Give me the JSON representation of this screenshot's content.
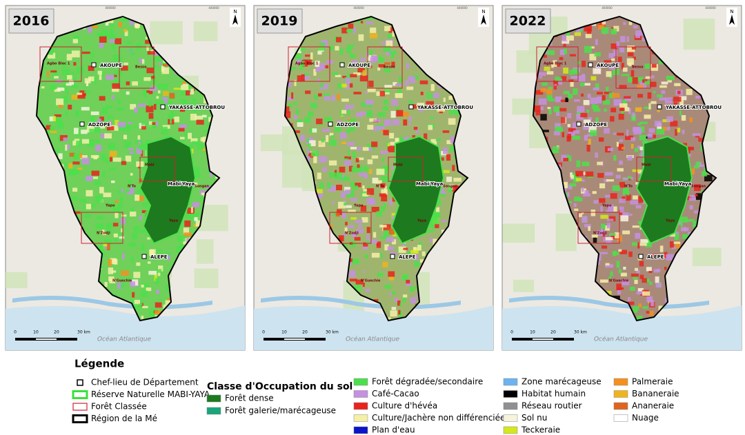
{
  "panels": [
    {
      "year": "2016"
    },
    {
      "year": "2019"
    },
    {
      "year": "2022"
    }
  ],
  "north": "N",
  "map_labels": [
    "AKOUPE",
    "YAKASSE-ATTOBROU",
    "ADZOPE",
    "ALEPE",
    "Mabi-Yaya",
    "Agbo Bloc 1",
    "Besso",
    "Mabi",
    "N'To",
    "Songan",
    "Yaya",
    "N'Zodji",
    "N'Guechie",
    "Yapo"
  ],
  "ocean": "Océan Atlantique",
  "scale": [
    "0",
    "10",
    "20",
    "30 km"
  ],
  "grid_labels": [
    "400000",
    "440000"
  ],
  "legend": {
    "title": "Légende",
    "symbols": [
      "Chef-lieu de Département",
      "Réserve Naturelle MABI-YAYA",
      "Forêt Classée",
      "Région de la Mé"
    ],
    "classes_title": "Classe d'Occupation du sol",
    "classes": [
      {
        "name": "Forêt dense",
        "color": "#1e7a1e"
      },
      {
        "name": "Forêt galerie/marécageuse",
        "color": "#1aa57a"
      },
      {
        "name": "Forêt dégradée/secondaire",
        "color": "#4be04b"
      },
      {
        "name": "Café-Cacao",
        "color": "#c590e0"
      },
      {
        "name": "Culture d'hévéa",
        "color": "#e8241c"
      },
      {
        "name": "Culture/Jachère non différenciées",
        "color": "#f5f0a8"
      },
      {
        "name": "Plan d'eau",
        "color": "#0a14c8"
      },
      {
        "name": "Zone marécageuse",
        "color": "#6cb4f0"
      },
      {
        "name": "Habitat humain",
        "color": "#000000"
      },
      {
        "name": "Réseau routier",
        "color": "#909090"
      },
      {
        "name": "Sol nu",
        "color": "#f8f4dc"
      },
      {
        "name": "Teckeraie",
        "color": "#d4e81c"
      },
      {
        "name": "Palmeraie",
        "color": "#f5901e"
      },
      {
        "name": "Bananeraie",
        "color": "#f0b41e"
      },
      {
        "name": "Ananeraie",
        "color": "#e0641e"
      },
      {
        "name": "Nuage",
        "color": "#ffffff"
      }
    ]
  }
}
